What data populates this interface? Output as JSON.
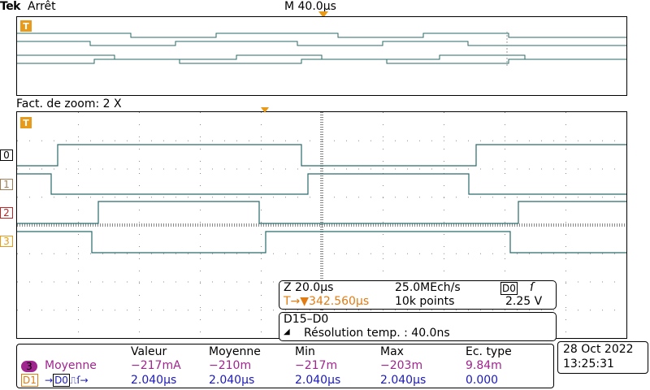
{
  "header": {
    "brand": "Tek",
    "status": "Arrêt",
    "timebase": "M 40.0µs"
  },
  "zoom": {
    "label": "Fact. de zoom: 2 X"
  },
  "channels": {
    "tags": [
      "0",
      "1",
      "2",
      "3"
    ],
    "trigger_marker": "T"
  },
  "info_box_1": {
    "zoom_scale": "Z 20.0µs",
    "sample_rate": "25.0MEch/s",
    "trigger_source": "D0",
    "trigger_slope_icon": "rising-edge-icon",
    "trigger_position": "T→▼342.560µs",
    "record_length": "10k points",
    "threshold": "2.25 V"
  },
  "info_box_2": {
    "bus": "D15–D0",
    "resolution": "Résolution temp.  : 40.0ns"
  },
  "measurements": {
    "headers": [
      "Valeur",
      "Moyenne",
      "Min",
      "Max",
      "Ec. type"
    ],
    "rows": [
      {
        "source": "3",
        "label": "Moyenne",
        "values": [
          "−217mA",
          "−210m",
          "−217m",
          "−203m",
          "9.84m"
        ]
      },
      {
        "source": "D1",
        "label": "→D0",
        "values": [
          "2.040µs",
          "2.040µs",
          "2.040µs",
          "2.040µs",
          "0.000"
        ]
      }
    ]
  },
  "datetime": {
    "date": "28 Oct  2022",
    "time": "13:25:31"
  },
  "colors": {
    "trace": "#2a6a6a",
    "trigger": "#e89b1a",
    "ch3": "#a0258f",
    "digital": "#1c1ab8"
  }
}
